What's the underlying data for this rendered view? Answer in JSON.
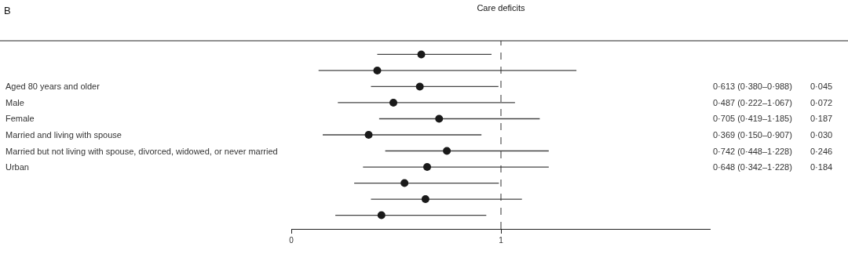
{
  "chart_data": {
    "type": "scatter",
    "orientation": "horizontal",
    "title": "Care deficits",
    "categories": [
      null,
      null,
      "Aged 80 years and older",
      "Male",
      "Female",
      "Married and living with spouse",
      "Married but not living with spouse, divorced, widowed, or never married",
      "Urban",
      null,
      null,
      null
    ],
    "series": [
      {
        "color": "#1a1a1a",
        "values": [
          0.62,
          0.41,
          0.613,
          0.487,
          0.705,
          0.369,
          0.742,
          0.648,
          0.54,
          0.64,
          0.43
        ],
        "errors": [
          [
            0.41,
            0.955
          ],
          [
            0.13,
            1.36
          ],
          [
            0.38,
            0.988
          ],
          [
            0.222,
            1.067
          ],
          [
            0.419,
            1.185
          ],
          [
            0.15,
            0.907
          ],
          [
            0.448,
            1.228
          ],
          [
            0.342,
            1.228
          ],
          [
            0.3,
            0.99
          ],
          [
            0.38,
            1.1
          ],
          [
            0.21,
            0.93
          ]
        ],
        "value_labels": [
          null,
          null,
          "0·613 (0·380–0·988)",
          "0·487 (0·222–1·067)",
          "0·705 (0·419–1·185)",
          "0·369 (0·150–0·907)",
          "0·742 (0·448–1·228)",
          "0·648 (0·342–1·228)",
          null,
          null,
          null
        ]
      }
    ],
    "xlim": [
      0,
      2
    ],
    "xticks": [
      0,
      1
    ],
    "marker": "circle",
    "ref_lines": [
      {
        "axis": "x",
        "value": 1,
        "line_style": "dashed",
        "color": "#333333"
      }
    ],
    "annotations": [
      "B",
      "0·045",
      "0·072",
      "0·187",
      "0·030",
      "0·246",
      "0·184"
    ]
  }
}
